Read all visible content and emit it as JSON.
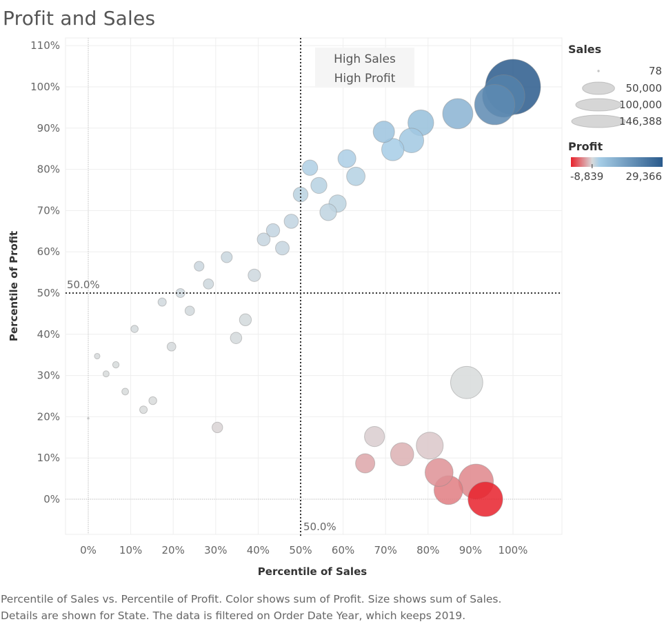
{
  "title": "Profit and Sales",
  "chart_data": {
    "type": "scatter",
    "title": "Profit and Sales",
    "xlabel": "Percentile of Sales",
    "ylabel": "Percentile of Profit",
    "xlim": [
      -5,
      110
    ],
    "ylim": [
      -9,
      112
    ],
    "x_ticks": [
      "0%",
      "10%",
      "20%",
      "30%",
      "40%",
      "50%",
      "60%",
      "70%",
      "80%",
      "90%",
      "100%"
    ],
    "y_ticks": [
      "0%",
      "10%",
      "20%",
      "30%",
      "40%",
      "50%",
      "60%",
      "70%",
      "80%",
      "90%",
      "100%",
      "110%"
    ],
    "reference_lines": {
      "x": 50,
      "y": 50,
      "x_label": "50.0%",
      "y_label": "50.0%"
    },
    "quadrant_annotation": [
      "High Sales",
      "High Profit"
    ],
    "size_field": "Sales",
    "color_field": "Profit",
    "points": [
      {
        "x": 0,
        "y": 19.6,
        "sales": 78,
        "profit": -50
      },
      {
        "x": 2.1,
        "y": 34.7,
        "sales": 1500,
        "profit": 200
      },
      {
        "x": 4.2,
        "y": 30.4,
        "sales": 1800,
        "profit": 100
      },
      {
        "x": 6.5,
        "y": 32.6,
        "sales": 2000,
        "profit": 150
      },
      {
        "x": 8.7,
        "y": 26.1,
        "sales": 2200,
        "profit": 50
      },
      {
        "x": 10.9,
        "y": 41.3,
        "sales": 2600,
        "profit": 400
      },
      {
        "x": 13,
        "y": 21.7,
        "sales": 2800,
        "profit": 0
      },
      {
        "x": 15.2,
        "y": 23.9,
        "sales": 3000,
        "profit": 20
      },
      {
        "x": 17.4,
        "y": 47.8,
        "sales": 3300,
        "profit": 700
      },
      {
        "x": 19.6,
        "y": 37,
        "sales": 3700,
        "profit": 300
      },
      {
        "x": 21.7,
        "y": 50,
        "sales": 3900,
        "profit": 900
      },
      {
        "x": 23.9,
        "y": 45.7,
        "sales": 4300,
        "profit": 600
      },
      {
        "x": 26.1,
        "y": 56.5,
        "sales": 4600,
        "profit": 1200
      },
      {
        "x": 28.3,
        "y": 52.2,
        "sales": 5000,
        "profit": 1000
      },
      {
        "x": 30.4,
        "y": 17.4,
        "sales": 5400,
        "profit": -300
      },
      {
        "x": 32.6,
        "y": 58.7,
        "sales": 5900,
        "profit": 1400
      },
      {
        "x": 34.8,
        "y": 39.1,
        "sales": 6300,
        "profit": 350
      },
      {
        "x": 37,
        "y": 43.5,
        "sales": 6900,
        "profit": 500
      },
      {
        "x": 39.1,
        "y": 54.3,
        "sales": 7500,
        "profit": 1100
      },
      {
        "x": 41.3,
        "y": 63,
        "sales": 8000,
        "profit": 1700
      },
      {
        "x": 43.5,
        "y": 65.2,
        "sales": 8600,
        "profit": 1900
      },
      {
        "x": 45.7,
        "y": 60.9,
        "sales": 9100,
        "profit": 1600
      },
      {
        "x": 47.8,
        "y": 67.4,
        "sales": 9800,
        "profit": 2000
      },
      {
        "x": 50,
        "y": 73.9,
        "sales": 10500,
        "profit": 2600
      },
      {
        "x": 52.2,
        "y": 80.4,
        "sales": 11500,
        "profit": 3600
      },
      {
        "x": 54.3,
        "y": 76.1,
        "sales": 12500,
        "profit": 3000
      },
      {
        "x": 56.5,
        "y": 69.6,
        "sales": 13500,
        "profit": 2300
      },
      {
        "x": 58.7,
        "y": 71.7,
        "sales": 14500,
        "profit": 2500
      },
      {
        "x": 60.9,
        "y": 82.6,
        "sales": 15500,
        "profit": 3900
      },
      {
        "x": 63,
        "y": 78.3,
        "sales": 16500,
        "profit": 3200
      },
      {
        "x": 65.2,
        "y": 8.7,
        "sales": 18000,
        "profit": -2500
      },
      {
        "x": 67.4,
        "y": 15.2,
        "sales": 19500,
        "profit": -600
      },
      {
        "x": 69.6,
        "y": 89.1,
        "sales": 22000,
        "profit": 6500
      },
      {
        "x": 71.7,
        "y": 84.8,
        "sales": 24000,
        "profit": 4500
      },
      {
        "x": 73.9,
        "y": 10.9,
        "sales": 26000,
        "profit": -2000
      },
      {
        "x": 76.1,
        "y": 87,
        "sales": 29000,
        "profit": 5500
      },
      {
        "x": 78.3,
        "y": 91.3,
        "sales": 32000,
        "profit": 7500
      },
      {
        "x": 80.4,
        "y": 13,
        "sales": 35000,
        "profit": -900
      },
      {
        "x": 82.6,
        "y": 6.5,
        "sales": 38000,
        "profit": -3500
      },
      {
        "x": 84.8,
        "y": 2.2,
        "sales": 40000,
        "profit": -4500
      },
      {
        "x": 87,
        "y": 93.5,
        "sales": 44000,
        "profit": 10000
      },
      {
        "x": 89.1,
        "y": 28.3,
        "sales": 50000,
        "profit": 50
      },
      {
        "x": 91.3,
        "y": 4.3,
        "sales": 58000,
        "profit": -4000
      },
      {
        "x": 93.5,
        "y": 0,
        "sales": 58000,
        "profit": -8839
      },
      {
        "x": 95.7,
        "y": 95.7,
        "sales": 78000,
        "profit": 19000
      },
      {
        "x": 97.8,
        "y": 97.8,
        "sales": 86000,
        "profit": 21000
      },
      {
        "x": 100,
        "y": 100,
        "sales": 146388,
        "profit": 29366
      }
    ]
  },
  "legend": {
    "size": {
      "title": "Sales",
      "entries": [
        "78",
        "50,000",
        "100,000",
        "146,388"
      ],
      "values": [
        78,
        50000,
        100000,
        146388
      ]
    },
    "color": {
      "title": "Profit",
      "min_label": "-8,839",
      "max_label": "29,366",
      "min": -8839,
      "max": 29366,
      "negative_color": "#e8212b",
      "zero_color": "#d8dadb",
      "low_positive_color": "#a6cde6",
      "positive_color": "#2a5a8c"
    }
  },
  "caption": {
    "line1": "Percentile of Sales vs. Percentile of Profit.  Color shows sum of Profit.  Size shows sum of Sales.",
    "line2": "Details are shown for State. The data is filtered on Order Date Year, which keeps 2019."
  }
}
